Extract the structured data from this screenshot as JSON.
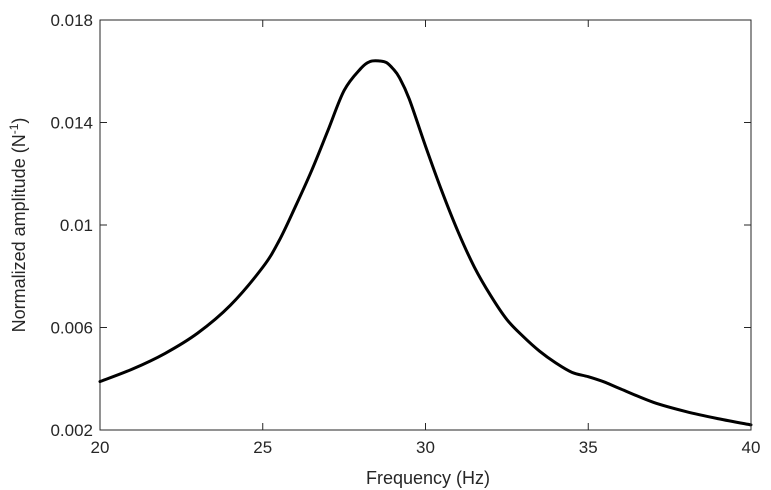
{
  "chart_data": {
    "type": "line",
    "title": "",
    "xlabel": "Frequency (Hz)",
    "ylabel": {
      "text": "Normalized amplitude (N",
      "superscript": "-1",
      "suffix": ")"
    },
    "xlim": [
      20,
      40
    ],
    "ylim": [
      0.002,
      0.018
    ],
    "xticks": [
      20,
      25,
      30,
      35,
      40
    ],
    "xtick_labels": [
      "20",
      "25",
      "30",
      "35",
      "40"
    ],
    "yticks": [
      0.002,
      0.006,
      0.01,
      0.014,
      0.018
    ],
    "ytick_labels": [
      "0.002",
      "0.006",
      "0.01",
      "0.014",
      "0.018"
    ],
    "grid": false,
    "box": true,
    "series": [
      {
        "color": "#000000",
        "x": [
          20,
          21,
          22,
          23,
          24,
          25,
          25.5,
          26,
          26.5,
          27,
          27.5,
          28,
          28.3,
          28.6,
          28.8,
          29,
          29.2,
          29.5,
          30,
          30.5,
          31,
          31.5,
          32,
          32.5,
          33,
          33.5,
          34,
          34.5,
          35,
          35.5,
          36,
          37,
          38,
          39,
          40
        ],
        "y": [
          0.00389,
          0.00438,
          0.00499,
          0.00578,
          0.00686,
          0.00835,
          0.00938,
          0.01071,
          0.01212,
          0.01368,
          0.01525,
          0.01609,
          0.01638,
          0.0164,
          0.01634,
          0.0161,
          0.01575,
          0.01492,
          0.01308,
          0.01133,
          0.00974,
          0.00836,
          0.00725,
          0.00631,
          0.00565,
          0.00508,
          0.00462,
          0.00425,
          0.00408,
          0.00387,
          0.0036,
          0.00308,
          0.00272,
          0.00244,
          0.0022
        ]
      }
    ]
  }
}
